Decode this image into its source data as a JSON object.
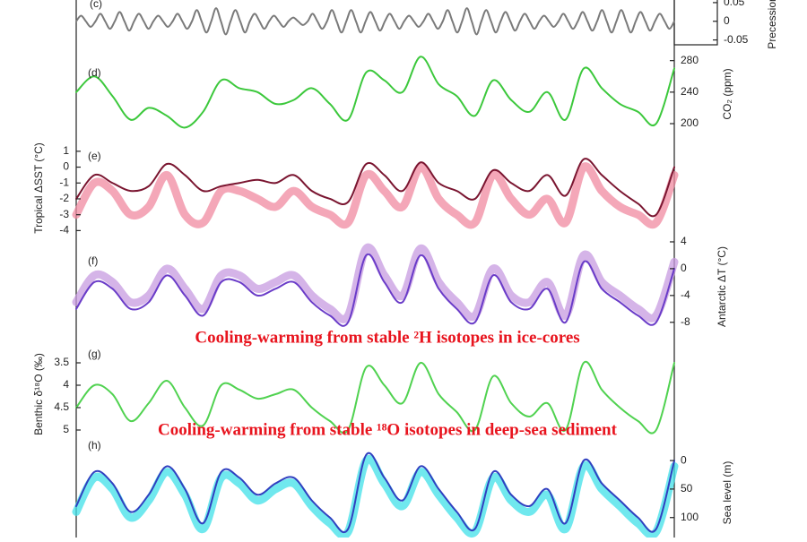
{
  "chart_data": [
    {
      "type": "line",
      "panel_label": "(c)",
      "y_label": "Precession",
      "axis_side": "box",
      "ylim": [
        -0.063,
        0.057
      ],
      "yticks": [
        0.05,
        0,
        -0.05
      ],
      "series": [
        {
          "color": "#7a7a7a",
          "style": "line",
          "values": [
            0,
            0.015,
            0,
            -0.015,
            0,
            0.02,
            0,
            -0.02,
            0,
            0.025,
            0,
            -0.025,
            0,
            0.02,
            0,
            -0.02,
            0,
            0.015,
            0,
            -0.015,
            0,
            0.02,
            0,
            -0.02,
            0,
            0.03,
            0,
            -0.03,
            0,
            0.035,
            0,
            -0.035,
            0,
            0.03,
            0,
            -0.03,
            0,
            0.02,
            0,
            -0.02,
            0,
            0.015,
            0,
            -0.015,
            0,
            0.01,
            0,
            -0.01,
            0,
            0.02,
            0,
            -0.02,
            0,
            0.03,
            0,
            -0.03,
            0,
            0.03,
            0,
            -0.03,
            0,
            0.025,
            0,
            -0.025,
            0,
            0.02,
            0,
            -0.02,
            0,
            0.015,
            0,
            -0.015,
            0,
            0.02,
            0,
            -0.02,
            0,
            0.03,
            0,
            -0.03,
            0,
            0.035,
            0,
            -0.035,
            0,
            0.03,
            0,
            -0.03,
            0,
            0.025,
            0,
            -0.025,
            0,
            0.02,
            0,
            -0.02,
            0,
            0.015,
            0,
            -0.015,
            0,
            0.02,
            0,
            -0.02,
            0,
            0.025,
            0,
            -0.025,
            0,
            0.03,
            0,
            -0.03,
            0,
            0.03,
            0,
            -0.03,
            0,
            0.025,
            0,
            -0.025,
            0,
            0.02,
            0,
            -0.02,
            0
          ]
        }
      ]
    },
    {
      "type": "line",
      "panel_label": "(d)",
      "y_label": "CO₂ (ppm)",
      "axis_side": "right",
      "ylim": [
        175,
        291
      ],
      "yticks": [
        280,
        240,
        200
      ],
      "series": [
        {
          "color": "#3cc83c",
          "style": "line",
          "values": [
            240,
            260,
            235,
            205,
            220,
            210,
            195,
            215,
            255,
            245,
            240,
            225,
            230,
            245,
            225,
            205,
            265,
            255,
            240,
            285,
            250,
            235,
            210,
            255,
            230,
            215,
            240,
            205,
            270,
            245,
            225,
            215,
            200,
            270
          ]
        }
      ]
    },
    {
      "type": "line",
      "panel_label": "(e)",
      "y_label": "Tropical ΔSST (°C)",
      "axis_side": "left",
      "ylim": [
        -4.6,
        1.5
      ],
      "yticks": [
        1,
        0,
        -1,
        -2,
        -3,
        -4
      ],
      "series": [
        {
          "color": "#f08aa0",
          "style": "band",
          "values": [
            -3,
            -1,
            -1.5,
            -3,
            -2.5,
            -0.5,
            -3,
            -3.5,
            -1.5,
            -1.5,
            -2,
            -2.5,
            -1.5,
            -2.5,
            -3,
            -3.5,
            -0.5,
            -1.5,
            -2.5,
            0,
            -2,
            -3,
            -3.5,
            -0.5,
            -2,
            -3,
            -2,
            -3.5,
            0,
            -1.5,
            -2.5,
            -3,
            -3.5,
            -0.5
          ]
        },
        {
          "color": "#7a1530",
          "style": "line",
          "values": [
            -2,
            -0.5,
            -1,
            -1.5,
            -1.2,
            0.2,
            -0.5,
            -1.5,
            -1.2,
            -1,
            -0.8,
            -1,
            -0.5,
            -1.5,
            -2,
            -2.2,
            0.2,
            -0.5,
            -1.5,
            0.3,
            -1,
            -1.5,
            -2,
            -0.2,
            -1,
            -1.5,
            -0.5,
            -1.8,
            0.5,
            -0.5,
            -1.5,
            -2.3,
            -3,
            0
          ]
        }
      ]
    },
    {
      "type": "line",
      "panel_label": "(f)",
      "y_label": "Antarctic ΔT (°C)",
      "axis_side": "right",
      "ylim": [
        -8.7,
        5.6
      ],
      "yticks": [
        4,
        0,
        -4,
        -8
      ],
      "annotation": "Cooling-warming from stable ²H isotopes in ice-cores",
      "series": [
        {
          "color": "#c79be0",
          "style": "band",
          "values": [
            -5,
            -1,
            -2,
            -5,
            -4,
            0,
            -3,
            -6,
            -1,
            -1,
            -3,
            -2,
            -1,
            -4,
            -6,
            -7,
            3,
            -1,
            -4,
            3,
            -2,
            -5,
            -7,
            0,
            -4,
            -5,
            -2,
            -7,
            2,
            -2,
            -4,
            -6,
            -7,
            1
          ]
        },
        {
          "color": "#6a3cc8",
          "style": "line",
          "values": [
            -6,
            -2,
            -3,
            -6,
            -5,
            -1,
            -4,
            -7,
            -2,
            -2,
            -4,
            -3,
            -2,
            -5,
            -7,
            -8,
            2,
            -2,
            -5,
            2,
            -3,
            -6,
            -8,
            -1,
            -5,
            -6,
            -3,
            -8,
            1,
            -3,
            -5,
            -7,
            -8,
            0
          ]
        }
      ]
    },
    {
      "type": "line",
      "panel_label": "(g)",
      "y_label": "Benthic δ¹⁸O (‰)",
      "axis_side": "left",
      "ylim": [
        5.2,
        3.2
      ],
      "yticks": [
        3.5,
        4,
        4.5,
        5
      ],
      "annotation": "Cooling-warming from stable ¹⁸O isotopes in deep-sea sediment",
      "series": [
        {
          "color": "#50d250",
          "style": "line",
          "values": [
            4.5,
            4.0,
            4.2,
            4.8,
            4.4,
            3.9,
            4.5,
            4.9,
            4.0,
            4.1,
            4.3,
            4.2,
            4.1,
            4.5,
            4.8,
            5.0,
            3.6,
            4.0,
            4.4,
            3.5,
            4.2,
            4.6,
            5.0,
            3.8,
            4.4,
            4.7,
            4.4,
            5.0,
            3.5,
            4.1,
            4.5,
            4.8,
            5.0,
            3.5
          ]
        }
      ]
    },
    {
      "type": "line",
      "panel_label": "(h)",
      "y_label": "Sea level (m)",
      "axis_side": "right",
      "ylim": [
        135,
        -30
      ],
      "yticks": [
        0,
        50,
        100
      ],
      "series": [
        {
          "color": "#40e0e8",
          "style": "band",
          "values": [
            90,
            30,
            50,
            100,
            70,
            20,
            60,
            120,
            30,
            40,
            70,
            50,
            40,
            80,
            110,
            125,
            0,
            40,
            80,
            20,
            60,
            100,
            125,
            30,
            70,
            90,
            60,
            120,
            10,
            50,
            80,
            110,
            125,
            10
          ]
        },
        {
          "color": "#3040c0",
          "style": "line",
          "values": [
            80,
            20,
            40,
            90,
            60,
            10,
            50,
            110,
            20,
            30,
            60,
            40,
            30,
            70,
            100,
            120,
            -10,
            30,
            70,
            10,
            50,
            90,
            120,
            20,
            60,
            80,
            50,
            110,
            0,
            40,
            70,
            100,
            120,
            0
          ]
        }
      ]
    }
  ]
}
